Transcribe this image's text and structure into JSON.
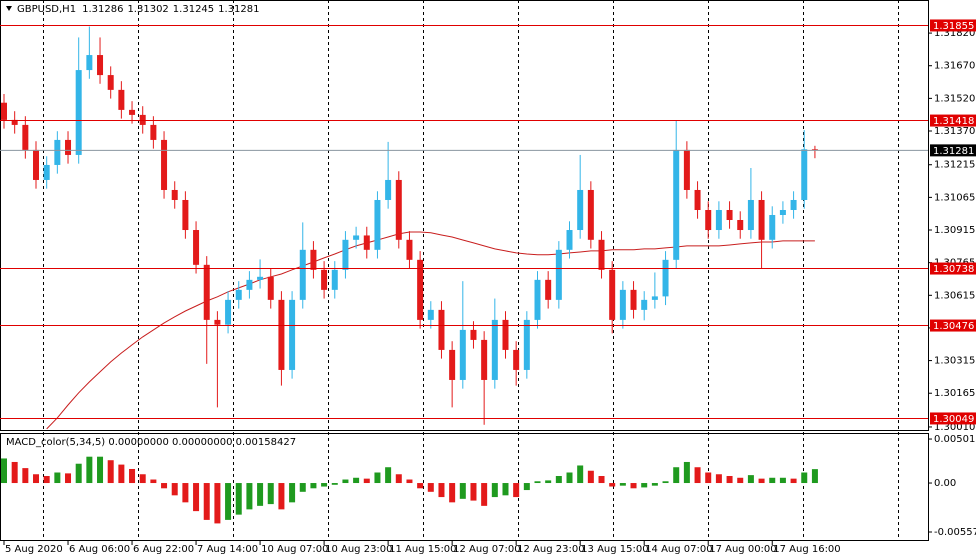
{
  "chart_data": [
    {
      "type": "candlestick",
      "title": "GBPUSD,H1",
      "categories": [
        "5 Aug 2020",
        null,
        null,
        null,
        null,
        null,
        "6 Aug 06:00",
        null,
        null,
        null,
        null,
        null,
        "6 Aug 22:00",
        null,
        null,
        null,
        null,
        null,
        "7 Aug 14:00",
        null,
        null,
        null,
        null,
        null,
        "10 Aug 07:00",
        null,
        null,
        null,
        null,
        null,
        "10 Aug 23:00",
        null,
        null,
        null,
        null,
        null,
        "11 Aug 15:00",
        null,
        null,
        null,
        null,
        null,
        "12 Aug 07:00",
        null,
        null,
        null,
        null,
        null,
        "12 Aug 23:00",
        null,
        null,
        null,
        null,
        null,
        "13 Aug 15:00",
        null,
        null,
        null,
        null,
        null,
        "14 Aug 07:00",
        null,
        null,
        null,
        null,
        null,
        "17 Aug 00:00",
        null,
        null,
        null,
        null,
        null,
        "17 Aug 16:00",
        null,
        null,
        null,
        null
      ],
      "open": [
        1.315,
        1.31421,
        1.31398,
        1.31283,
        1.31145,
        1.31214,
        1.31329,
        1.3126,
        1.3165,
        1.31719,
        1.31627,
        1.31559,
        1.31467,
        1.31444,
        1.31398,
        1.31329,
        1.31099,
        1.31053,
        1.30915,
        1.30755,
        1.30502,
        1.3048,
        1.30594,
        1.3064,
        1.30686,
        1.307,
        1.30594,
        1.30272,
        1.30594,
        1.30824,
        1.30732,
        1.3064,
        1.30732,
        1.3087,
        1.3089,
        1.30824,
        1.31053,
        1.31145,
        1.3087,
        1.30778,
        1.30502,
        1.30548,
        1.30364,
        1.30226,
        1.30456,
        1.3041,
        1.30226,
        1.30502,
        1.30364,
        1.30272,
        1.30502,
        1.30686,
        1.30594,
        1.30824,
        1.30915,
        1.31099,
        1.3087,
        1.30732,
        1.30502,
        1.3064,
        1.30548,
        1.30594,
        1.3061,
        1.30778,
        1.31283,
        1.31099,
        1.31007,
        1.30915,
        1.31007,
        1.30961,
        1.30915,
        1.31053,
        1.3087,
        1.30984,
        1.31007,
        1.31053,
        1.31286
      ],
      "high": [
        1.3154,
        1.31461,
        1.31438,
        1.31323,
        1.31254,
        1.31369,
        1.31369,
        1.318,
        1.3185,
        1.318,
        1.31667,
        1.31599,
        1.31507,
        1.31484,
        1.31438,
        1.31369,
        1.31139,
        1.31093,
        1.30955,
        1.30795,
        1.30542,
        1.30634,
        1.3068,
        1.30726,
        1.3078,
        1.3074,
        1.30634,
        1.30634,
        1.3095,
        1.30864,
        1.30772,
        1.30772,
        1.3091,
        1.3093,
        1.3093,
        1.31093,
        1.3132,
        1.31185,
        1.3091,
        1.30818,
        1.30588,
        1.30588,
        1.30404,
        1.3068,
        1.30496,
        1.3045,
        1.306,
        1.30542,
        1.30404,
        1.30542,
        1.30726,
        1.30726,
        1.30864,
        1.30955,
        1.3126,
        1.31139,
        1.3091,
        1.30772,
        1.3068,
        1.3068,
        1.30634,
        1.3072,
        1.30818,
        1.31418,
        1.31323,
        1.31139,
        1.31047,
        1.31047,
        1.31047,
        1.31001,
        1.312,
        1.31093,
        1.31024,
        1.31047,
        1.31093,
        1.31374,
        1.31302
      ],
      "low": [
        1.31381,
        1.31358,
        1.31243,
        1.31105,
        1.31105,
        1.31174,
        1.3122,
        1.3122,
        1.3161,
        1.31587,
        1.31519,
        1.31427,
        1.31404,
        1.31358,
        1.31289,
        1.31059,
        1.31013,
        1.30875,
        1.30715,
        1.303,
        1.301,
        1.3044,
        1.30554,
        1.306,
        1.30646,
        1.30554,
        1.302,
        1.30232,
        1.30554,
        1.30692,
        1.306,
        1.306,
        1.30692,
        1.3083,
        1.30784,
        1.30784,
        1.31013,
        1.3083,
        1.30738,
        1.30462,
        1.30462,
        1.30324,
        1.301,
        1.30186,
        1.3037,
        1.3002,
        1.30186,
        1.30324,
        1.302,
        1.30232,
        1.30462,
        1.30554,
        1.30554,
        1.30784,
        1.30875,
        1.3083,
        1.30692,
        1.3044,
        1.30462,
        1.30508,
        1.305,
        1.30554,
        1.3057,
        1.30738,
        1.31059,
        1.30967,
        1.30875,
        1.30875,
        1.30921,
        1.30875,
        1.30875,
        1.30738,
        1.3083,
        1.30944,
        1.30967,
        1.31013,
        1.31245
      ],
      "close": [
        1.31421,
        1.31398,
        1.31283,
        1.31145,
        1.31214,
        1.31329,
        1.3126,
        1.3165,
        1.31719,
        1.31627,
        1.31559,
        1.31467,
        1.31444,
        1.31398,
        1.31329,
        1.31099,
        1.31053,
        1.30915,
        1.30755,
        1.30502,
        1.3048,
        1.30594,
        1.3064,
        1.30686,
        1.307,
        1.30594,
        1.30272,
        1.30594,
        1.30824,
        1.30732,
        1.3064,
        1.30732,
        1.3087,
        1.3089,
        1.30824,
        1.31053,
        1.31145,
        1.3087,
        1.30778,
        1.30502,
        1.30548,
        1.30364,
        1.30226,
        1.30456,
        1.3041,
        1.30226,
        1.30502,
        1.30364,
        1.30272,
        1.30502,
        1.30686,
        1.30594,
        1.30824,
        1.30915,
        1.31099,
        1.3087,
        1.30732,
        1.30502,
        1.3064,
        1.30548,
        1.30594,
        1.3061,
        1.30778,
        1.31283,
        1.31099,
        1.31007,
        1.30915,
        1.31007,
        1.30961,
        1.30915,
        1.31053,
        1.3087,
        1.30984,
        1.31007,
        1.31053,
        1.31286,
        1.31281
      ],
      "up_color": "#33b5e8",
      "down_color": "#e31a1a",
      "moving_average": {
        "color": "#c81e1e",
        "values": [
          null,
          null,
          null,
          null,
          1.30001,
          1.30052,
          1.30111,
          1.30167,
          1.30217,
          1.30263,
          1.30309,
          1.3035,
          1.30387,
          1.30424,
          1.30456,
          1.30488,
          1.30516,
          1.30543,
          1.30566,
          1.30589,
          1.30608,
          1.30631,
          1.30649,
          1.30667,
          1.30686,
          1.307,
          1.30713,
          1.30732,
          1.3075,
          1.30768,
          1.30787,
          1.30805,
          1.30824,
          1.30842,
          1.30856,
          1.30869,
          1.30883,
          1.30897,
          1.30906,
          1.30906,
          1.30902,
          1.30892,
          1.30883,
          1.30869,
          1.30856,
          1.30842,
          1.30828,
          1.30819,
          1.3081,
          1.30805,
          1.30801,
          1.30801,
          1.30805,
          1.3081,
          1.30814,
          1.30819,
          1.30819,
          1.30824,
          1.30824,
          1.30824,
          1.30828,
          1.30828,
          1.30833,
          1.30837,
          1.30842,
          1.30842,
          1.30842,
          1.30842,
          1.30846,
          1.30851,
          1.30856,
          1.3086,
          1.3086,
          1.30865,
          1.30865,
          1.30865,
          1.30865
        ]
      },
      "levels": {
        "color": "#e00000",
        "values": [
          1.31855,
          1.31418,
          1.30738,
          1.30476,
          1.30049
        ]
      },
      "price_line_color": "#8a96a0",
      "ylim": [
        1.29996,
        1.31972
      ],
      "yticks": [
        {
          "value": 1.3182,
          "label": "1.31820"
        },
        {
          "value": 1.3167,
          "label": "1.31670"
        },
        {
          "value": 1.3152,
          "label": "1.31520"
        },
        {
          "value": 1.3137,
          "label": "1.31370"
        },
        1.31215,
        1.31065,
        1.30915,
        1.30765,
        1.30615,
        1.30465,
        1.30315,
        1.30165,
        {
          "value": 1.3001,
          "label": "1.30010"
        }
      ],
      "grid": true
    },
    {
      "type": "bar",
      "title": "MACD_color(5,34,5) 0.00000000 0.00000000 0.00158427",
      "values": [
        0.0028,
        0.0024,
        0.0017,
        0.001,
        0.0008,
        0.0012,
        0.0011,
        0.0022,
        0.003,
        0.003,
        0.0026,
        0.0021,
        0.0016,
        0.001,
        0.0004,
        -0.0006,
        -0.0014,
        -0.0022,
        -0.0032,
        -0.0042,
        -0.0046,
        -0.0042,
        -0.0036,
        -0.003,
        -0.0026,
        -0.0024,
        -0.003,
        -0.0022,
        -0.001,
        -0.0006,
        -0.0004,
        -0.0002,
        0.0004,
        0.0006,
        0.0005,
        0.0012,
        0.0018,
        0.001,
        0.0004,
        -0.0006,
        -0.001,
        -0.0016,
        -0.0022,
        -0.0018,
        -0.002,
        -0.0026,
        -0.0016,
        -0.0014,
        -0.0016,
        -0.0008,
        0.0002,
        0.0003,
        0.0008,
        0.0012,
        0.002,
        0.0014,
        0.0008,
        -0.0004,
        -0.0003,
        -0.0006,
        -0.0005,
        -0.0003,
        0.0002,
        0.0018,
        0.0024,
        0.0018,
        0.0012,
        0.001,
        0.0008,
        0.0006,
        0.0009,
        0.0005,
        0.0006,
        0.0006,
        0.0005,
        0.0012,
        0.00158427
      ],
      "up_color": "#1f9a1f",
      "down_color": "#e31a1a",
      "ylim": [
        -0.00649,
        0.0057
      ],
      "yticks": [
        0.0050125,
        {
          "value": 0,
          "label": "0.00"
        },
        -0.0055772
      ]
    }
  ]
}
